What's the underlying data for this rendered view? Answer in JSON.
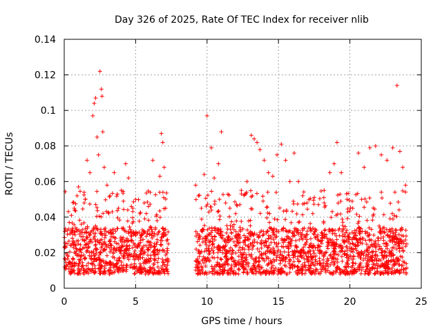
{
  "chart_data": {
    "type": "scatter",
    "title": "Day 326 of 2025, Rate Of TEC Index for receiver nlib",
    "xlabel": "GPS time / hours",
    "ylabel": "ROTI / TECUs",
    "xlim": [
      0,
      25
    ],
    "ylim": [
      0,
      0.14
    ],
    "xticks": [
      "0",
      "5",
      "10",
      "15",
      "20",
      "25"
    ],
    "yticks": [
      "0",
      "0.02",
      "0.04",
      "0.06",
      "0.08",
      "0.1",
      "0.12",
      "0.14"
    ],
    "grid": true,
    "marker": "+",
    "color": "#ff0000",
    "series": [
      {
        "name": "ROTI",
        "x": [
          0.05,
          0.2,
          0.35,
          0.5,
          0.7,
          0.9,
          1.0,
          1.2,
          1.4,
          1.6,
          1.8,
          2.0,
          2.1,
          2.2,
          2.3,
          2.4,
          2.5,
          2.6,
          2.65,
          2.7,
          2.8,
          3.0,
          3.2,
          3.5,
          3.8,
          4.0,
          4.3,
          4.5,
          4.8,
          5.0,
          5.3,
          5.6,
          5.9,
          6.2,
          6.5,
          6.7,
          6.8,
          6.9,
          7.0,
          7.1,
          9.2,
          9.4,
          9.6,
          9.8,
          10.0,
          10.3,
          10.5,
          10.8,
          11.0,
          11.3,
          11.6,
          12.0,
          12.4,
          12.8,
          13.1,
          13.3,
          13.5,
          13.7,
          14.0,
          14.3,
          14.6,
          14.9,
          15.2,
          15.5,
          15.8,
          16.1,
          16.4,
          16.7,
          17.0,
          17.4,
          17.8,
          18.2,
          18.6,
          18.9,
          19.1,
          19.4,
          19.8,
          20.2,
          20.6,
          21.0,
          21.4,
          21.8,
          22.2,
          22.6,
          23.0,
          23.3,
          23.5,
          23.7,
          23.9
        ],
        "y": [
          0.032,
          0.025,
          0.037,
          0.041,
          0.045,
          0.052,
          0.057,
          0.036,
          0.048,
          0.072,
          0.065,
          0.097,
          0.104,
          0.107,
          0.085,
          0.075,
          0.122,
          0.112,
          0.108,
          0.088,
          0.068,
          0.058,
          0.052,
          0.065,
          0.045,
          0.055,
          0.07,
          0.062,
          0.045,
          0.05,
          0.042,
          0.048,
          0.046,
          0.072,
          0.038,
          0.063,
          0.087,
          0.082,
          0.068,
          0.045,
          0.058,
          0.052,
          0.045,
          0.064,
          0.097,
          0.079,
          0.062,
          0.07,
          0.088,
          0.048,
          0.045,
          0.042,
          0.055,
          0.06,
          0.086,
          0.084,
          0.082,
          0.078,
          0.072,
          0.065,
          0.063,
          0.075,
          0.081,
          0.072,
          0.06,
          0.076,
          0.06,
          0.052,
          0.048,
          0.042,
          0.047,
          0.055,
          0.065,
          0.07,
          0.082,
          0.065,
          0.05,
          0.045,
          0.076,
          0.068,
          0.079,
          0.08,
          0.075,
          0.072,
          0.079,
          0.114,
          0.077,
          0.068,
          0.058
        ],
        "band_note": "dense scatter between about 0.005 and 0.035 TECU from 0 to 7.3 h and from 9.2 to 24 h; no data from 7.3 to 9.2 h"
      }
    ]
  }
}
